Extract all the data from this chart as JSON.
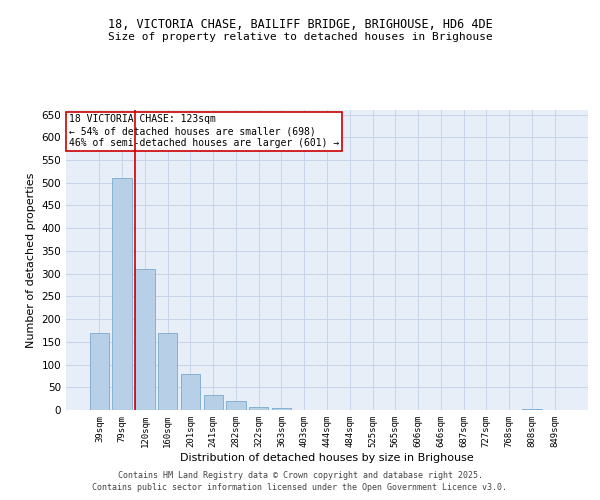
{
  "title_line1": "18, VICTORIA CHASE, BAILIFF BRIDGE, BRIGHOUSE, HD6 4DE",
  "title_line2": "Size of property relative to detached houses in Brighouse",
  "xlabel": "Distribution of detached houses by size in Brighouse",
  "ylabel": "Number of detached properties",
  "categories": [
    "39sqm",
    "79sqm",
    "120sqm",
    "160sqm",
    "201sqm",
    "241sqm",
    "282sqm",
    "322sqm",
    "363sqm",
    "403sqm",
    "444sqm",
    "484sqm",
    "525sqm",
    "565sqm",
    "606sqm",
    "646sqm",
    "687sqm",
    "727sqm",
    "768sqm",
    "808sqm",
    "849sqm"
  ],
  "values": [
    170,
    510,
    310,
    170,
    80,
    33,
    20,
    7,
    5,
    1,
    0,
    0,
    0,
    0,
    0,
    0,
    0,
    0,
    0,
    3,
    0
  ],
  "bar_color": "#b8cfe8",
  "bar_edge_color": "#6a9fc8",
  "vline_color": "#cc0000",
  "annotation_text": "18 VICTORIA CHASE: 123sqm\n← 54% of detached houses are smaller (698)\n46% of semi-detached houses are larger (601) →",
  "annotation_box_color": "#ffffff",
  "annotation_box_edge": "#cc0000",
  "ylim": [
    0,
    660
  ],
  "yticks": [
    0,
    50,
    100,
    150,
    200,
    250,
    300,
    350,
    400,
    450,
    500,
    550,
    600,
    650
  ],
  "grid_color": "#c8d4e8",
  "background_color": "#e8eef8",
  "footer_line1": "Contains HM Land Registry data © Crown copyright and database right 2025.",
  "footer_line2": "Contains public sector information licensed under the Open Government Licence v3.0."
}
